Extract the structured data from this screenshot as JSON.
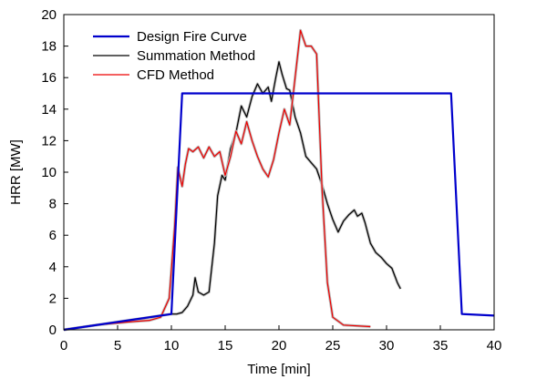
{
  "chart_data": {
    "type": "line",
    "xlabel": "Time [min]",
    "ylabel": "HRR [MW]",
    "xlim": [
      0,
      40
    ],
    "ylim": [
      0,
      20
    ],
    "xticks": [
      0,
      5,
      10,
      15,
      20,
      25,
      30,
      35,
      40
    ],
    "yticks": [
      0,
      2,
      4,
      6,
      8,
      10,
      12,
      14,
      16,
      18,
      20
    ],
    "grid": false,
    "legend_position": "top-left",
    "series": [
      {
        "name": "Design Fire Curve",
        "color": "#0000cc",
        "x": [
          0,
          5,
          10,
          11,
          36,
          37,
          40
        ],
        "y": [
          0,
          0.5,
          1.0,
          15.0,
          15.0,
          1.0,
          0.9
        ]
      },
      {
        "name": "Summation Method",
        "color": "#000000",
        "x": [
          0,
          2,
          4,
          6,
          8,
          9,
          10,
          10.5,
          11,
          11.5,
          12,
          12.2,
          12.5,
          13,
          13.5,
          14,
          14.3,
          14.7,
          15,
          15.5,
          16,
          16.5,
          17,
          17.5,
          18,
          18.5,
          19,
          19.3,
          19.7,
          20,
          20.3,
          20.7,
          21,
          21.5,
          22,
          22.5,
          23,
          23.5,
          24,
          24.5,
          25,
          25.5,
          26,
          26.5,
          27,
          27.3,
          27.7,
          28,
          28.5,
          29,
          29.5,
          30,
          30.5,
          31,
          31.3
        ],
        "y": [
          0,
          0.2,
          0.4,
          0.6,
          0.8,
          0.9,
          1.0,
          1.0,
          1.1,
          1.5,
          2.2,
          3.3,
          2.4,
          2.2,
          2.4,
          5.5,
          8.5,
          9.8,
          9.5,
          11.5,
          12.5,
          14.2,
          13.5,
          14.8,
          15.6,
          15.0,
          15.4,
          14.5,
          16.0,
          17.0,
          16.2,
          15.3,
          15.2,
          13.5,
          12.5,
          11.0,
          10.6,
          10.2,
          9.2,
          8.0,
          7.0,
          6.2,
          6.9,
          7.3,
          7.6,
          7.2,
          7.4,
          6.8,
          5.5,
          4.9,
          4.6,
          4.2,
          3.9,
          3.0,
          2.6
        ]
      },
      {
        "name": "CFD Method",
        "color": "#ee0000",
        "x": [
          0,
          3,
          6,
          8,
          9,
          9.8,
          10.3,
          10.6,
          11,
          11.3,
          11.6,
          12,
          12.5,
          13,
          13.5,
          14,
          14.5,
          15,
          15.5,
          16,
          16.5,
          17,
          17.5,
          18,
          18.5,
          19,
          19.5,
          20,
          20.5,
          21,
          21.5,
          22,
          22.5,
          23,
          23.5,
          24,
          24.5,
          25,
          26,
          28.5
        ],
        "y": [
          0,
          0.3,
          0.5,
          0.6,
          0.8,
          2.0,
          6.5,
          10.3,
          9.1,
          10.5,
          11.5,
          11.3,
          11.6,
          10.9,
          11.6,
          11.0,
          11.3,
          9.8,
          11.0,
          12.6,
          11.8,
          13.2,
          12.0,
          11.0,
          10.2,
          9.7,
          10.8,
          12.5,
          14.0,
          13.0,
          16.0,
          19.0,
          18.0,
          18.0,
          17.5,
          9.0,
          3.0,
          0.8,
          0.3,
          0.2
        ]
      }
    ]
  }
}
